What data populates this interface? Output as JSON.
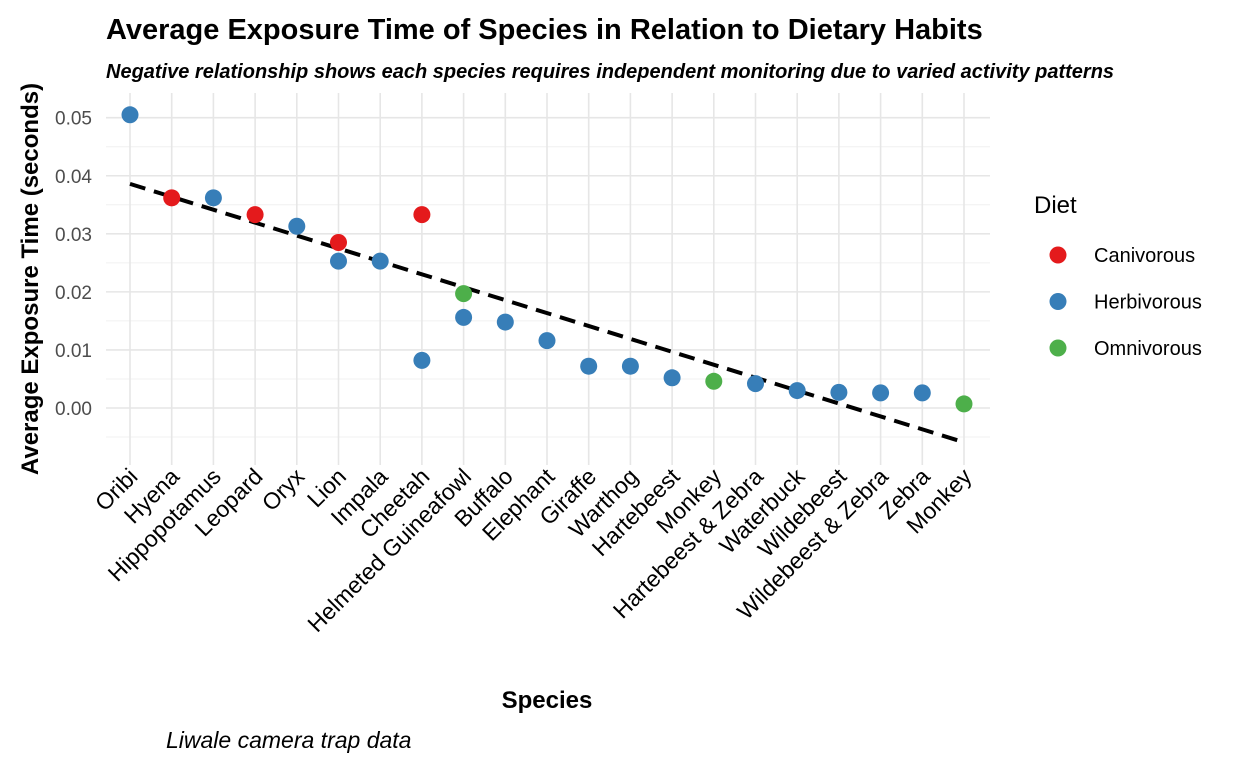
{
  "chart_data": {
    "type": "scatter",
    "title": "Average Exposure Time of Species in Relation to Dietary Habits",
    "subtitle": "Negative relationship shows each species requires independent monitoring due to varied activity patterns",
    "xlabel": "Species",
    "ylabel": "Average Exposure Time (seconds)",
    "caption": "Liwale camera trap data",
    "ylim": [
      -0.0095,
      0.0535
    ],
    "yticks": [
      0.0,
      0.01,
      0.02,
      0.03,
      0.04,
      0.05
    ],
    "ytick_labels": [
      "0.00",
      "0.01",
      "0.02",
      "0.03",
      "0.04",
      "0.05"
    ],
    "grid": true,
    "legend_position": "right",
    "legend": {
      "title": "Diet",
      "entries": [
        {
          "label": "Canivorous",
          "color": "#e41a1c"
        },
        {
          "label": "Herbivorous",
          "color": "#377eb8"
        },
        {
          "label": "Omnivorous",
          "color": "#4daf4a"
        }
      ]
    },
    "categories": [
      "Oribi",
      "Hyena",
      "Hippopotamus",
      "Leopard",
      "Oryx",
      "Lion",
      "Impala",
      "Cheetah",
      "Helmeted Guineafowl",
      "Buffalo",
      "Elephant",
      "Giraffe",
      "Warthog",
      "Hartebeest",
      "Monkey",
      "Hartebeest & Zebra",
      "Waterbuck",
      "Wildebeest",
      "Wildebeest & Zebra",
      "Zebra",
      "Monkey"
    ],
    "points": [
      {
        "category_index": 0,
        "y": 0.0505,
        "diet": "Herbivorous"
      },
      {
        "category_index": 1,
        "y": 0.0362,
        "diet": "Canivorous"
      },
      {
        "category_index": 2,
        "y": 0.0362,
        "diet": "Herbivorous"
      },
      {
        "category_index": 3,
        "y": 0.0333,
        "diet": "Canivorous"
      },
      {
        "category_index": 4,
        "y": 0.0313,
        "diet": "Herbivorous"
      },
      {
        "category_index": 5,
        "y": 0.0285,
        "diet": "Canivorous"
      },
      {
        "category_index": 5,
        "y": 0.0253,
        "diet": "Herbivorous"
      },
      {
        "category_index": 6,
        "y": 0.0253,
        "diet": "Herbivorous"
      },
      {
        "category_index": 7,
        "y": 0.0333,
        "diet": "Canivorous"
      },
      {
        "category_index": 7,
        "y": 0.0082,
        "diet": "Herbivorous"
      },
      {
        "category_index": 8,
        "y": 0.0197,
        "diet": "Omnivorous"
      },
      {
        "category_index": 8,
        "y": 0.0156,
        "diet": "Herbivorous"
      },
      {
        "category_index": 9,
        "y": 0.0148,
        "diet": "Herbivorous"
      },
      {
        "category_index": 10,
        "y": 0.0116,
        "diet": "Herbivorous"
      },
      {
        "category_index": 11,
        "y": 0.0072,
        "diet": "Herbivorous"
      },
      {
        "category_index": 12,
        "y": 0.0072,
        "diet": "Herbivorous"
      },
      {
        "category_index": 13,
        "y": 0.0052,
        "diet": "Herbivorous"
      },
      {
        "category_index": 14,
        "y": 0.0046,
        "diet": "Omnivorous"
      },
      {
        "category_index": 15,
        "y": 0.0042,
        "diet": "Herbivorous"
      },
      {
        "category_index": 16,
        "y": 0.003,
        "diet": "Herbivorous"
      },
      {
        "category_index": 17,
        "y": 0.0027,
        "diet": "Herbivorous"
      },
      {
        "category_index": 18,
        "y": 0.0026,
        "diet": "Herbivorous"
      },
      {
        "category_index": 19,
        "y": 0.0026,
        "diet": "Herbivorous"
      },
      {
        "category_index": 20,
        "y": 0.0007,
        "diet": "Omnivorous"
      }
    ],
    "trend_line": {
      "style": "dashed",
      "color": "#000000",
      "start": {
        "category_index": 0,
        "y": 0.0386
      },
      "end": {
        "category_index": 20,
        "y": -0.0059
      }
    }
  }
}
